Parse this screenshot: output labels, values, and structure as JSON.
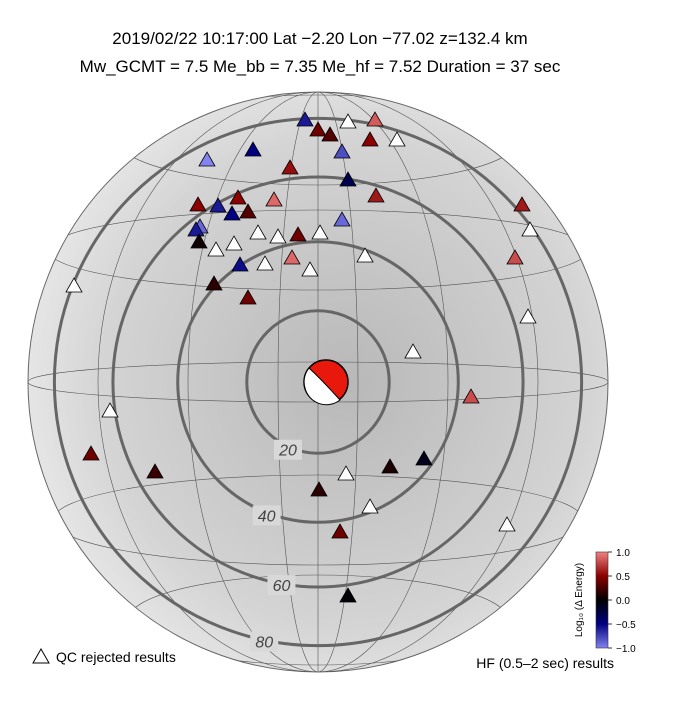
{
  "header": {
    "line1": "2019/02/22  10:17:00   Lat −2.20    Lon −77.02   z=132.4 km",
    "line2": "Mw_GCMT = 7.5   Me_bb = 7.35   Me_hf = 7.52   Duration = 37 sec"
  },
  "rings": [
    {
      "value": 20,
      "label": "20"
    },
    {
      "value": 40,
      "label": "40"
    },
    {
      "value": 60,
      "label": "60"
    },
    {
      "value": 80,
      "label": "80"
    }
  ],
  "colorbar": {
    "label": "Log₁₀ (Δ Energy)",
    "lim": [
      -1,
      1
    ],
    "ticks": [
      {
        "value": 1,
        "label": "1.0"
      },
      {
        "value": 0.5,
        "label": "0.5"
      },
      {
        "value": 0,
        "label": "0.0"
      },
      {
        "value": -0.5,
        "label": "−0.5"
      },
      {
        "value": -1,
        "label": "−1.0"
      }
    ]
  },
  "legend": {
    "rejected": "QC rejected results",
    "hf": "HF (0.5–2 sec) results"
  },
  "stations": [
    -0.6,
    0.4,
    null,
    0.85,
    0.3,
    0.5,
    null,
    -0.5,
    -0.8,
    -1.0,
    0.55,
    -0.3,
    0.6,
    0.5,
    -0.6,
    0.5,
    0.9,
    -0.5,
    0.3,
    -0.9,
    -0.6,
    0.6,
    null,
    -0.9,
    null,
    null,
    0.4,
    null,
    0.05,
    null,
    null,
    -0.55,
    null,
    0.9,
    null,
    null,
    0.8,
    0.15,
    null,
    0.4,
    null,
    null,
    0.8,
    null,
    0.4,
    0.2,
    null,
    0.1,
    -0.1,
    0.15,
    null,
    0.4,
    null,
    -0.02
  ]
}
